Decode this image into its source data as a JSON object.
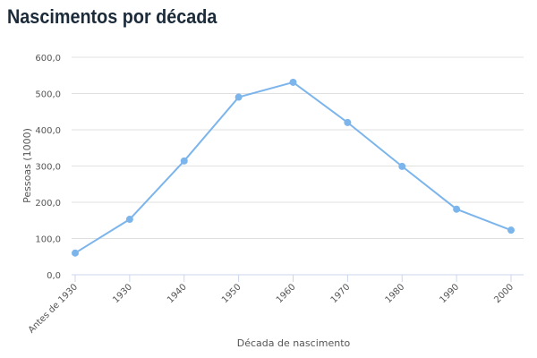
{
  "chart_data": {
    "type": "line",
    "title": "Nascimentos por década",
    "xlabel": "Década de nascimento",
    "ylabel": "Pessoas (1000)",
    "categories": [
      "Antes de 1930",
      "1930",
      "1940",
      "1950",
      "1960",
      "1970",
      "1980",
      "1990",
      "2000"
    ],
    "values": [
      60,
      153,
      314,
      490,
      531,
      420,
      299,
      181,
      123
    ],
    "ylim": [
      0,
      600
    ],
    "yticks": [
      "0,0",
      "100,0",
      "200,0",
      "300,0",
      "400,0",
      "500,0",
      "600,0"
    ],
    "grid": true,
    "legend": "none",
    "color": "#7cb5ec"
  }
}
